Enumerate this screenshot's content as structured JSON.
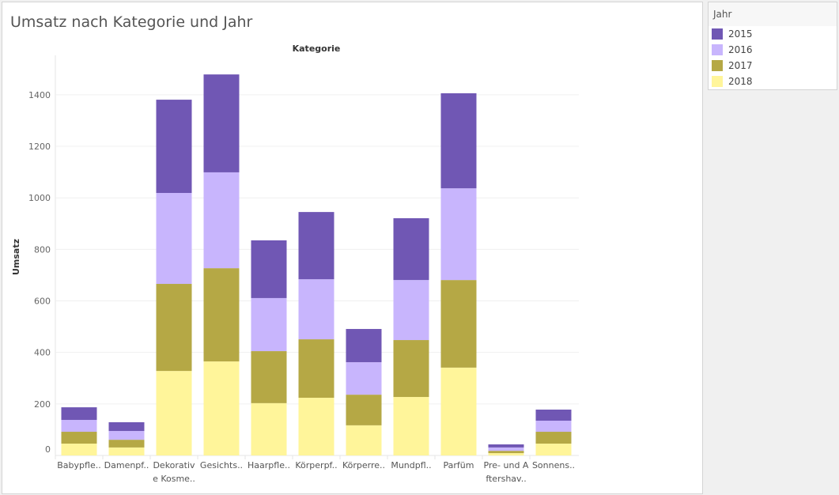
{
  "title": "Umsatz nach Kategorie und Jahr",
  "legend": {
    "title": "Jahr",
    "items": [
      {
        "label": "2015",
        "color": "#7057b4"
      },
      {
        "label": "2016",
        "color": "#c8b5fd"
      },
      {
        "label": "2017",
        "color": "#b5a845"
      },
      {
        "label": "2018",
        "color": "#fff59a"
      }
    ]
  },
  "chart_data": {
    "type": "bar",
    "stacked": true,
    "title": "Umsatz nach Kategorie und Jahr",
    "column_header": "Kategorie",
    "xlabel": "",
    "ylabel": "Umsatz",
    "ylim": [
      0,
      1550
    ],
    "yticks": [
      0,
      200,
      400,
      600,
      800,
      1000,
      1200,
      1400
    ],
    "grid": true,
    "legend_position": "right",
    "categories": [
      [
        "Babypfle.."
      ],
      [
        "Damenpf.."
      ],
      [
        "Dekorativ",
        "e Kosme.."
      ],
      [
        "Gesichts.."
      ],
      [
        "Haarpfle.."
      ],
      [
        "Körperpf.."
      ],
      [
        "Körperre.."
      ],
      [
        "Mundpfl.."
      ],
      [
        "Parfüm"
      ],
      [
        "Pre- und A",
        "ftershav.."
      ],
      [
        "Sonnens.."
      ]
    ],
    "series": [
      {
        "name": "2018",
        "color": "#fff59a",
        "values": [
          46,
          31,
          328,
          365,
          203,
          224,
          117,
          227,
          341,
          9,
          46
        ]
      },
      {
        "name": "2017",
        "color": "#b5a845",
        "values": [
          46,
          30,
          338,
          362,
          202,
          227,
          119,
          221,
          340,
          9,
          46
        ]
      },
      {
        "name": "2016",
        "color": "#c8b5fd",
        "values": [
          46,
          34,
          353,
          372,
          206,
          233,
          126,
          233,
          356,
          13,
          43
        ]
      },
      {
        "name": "2015",
        "color": "#7057b4",
        "values": [
          49,
          34,
          362,
          380,
          224,
          261,
          129,
          240,
          369,
          12,
          43
        ]
      }
    ]
  }
}
